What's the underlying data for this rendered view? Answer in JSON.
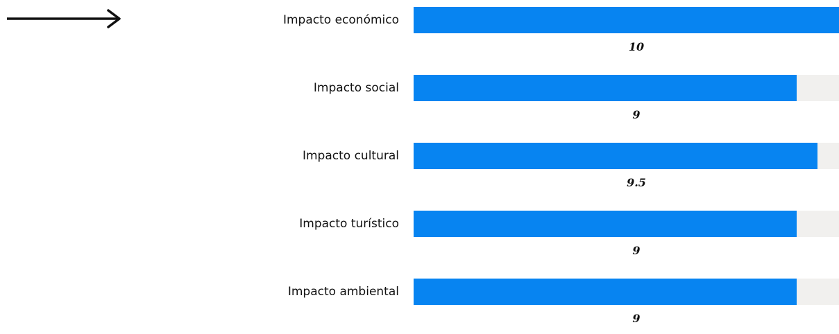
{
  "decor": {
    "arrow_icon": "long-right-arrow-icon"
  },
  "colors": {
    "bar": "#0784f1",
    "track": "#f1f0ee",
    "text": "#111111"
  },
  "chart_data": {
    "type": "bar",
    "orientation": "horizontal",
    "categories": [
      "Impacto económico",
      "Impacto social",
      "Impacto cultural",
      "Impacto turístico",
      "Impacto ambiental"
    ],
    "values": [
      10,
      9,
      9.5,
      9,
      9
    ],
    "value_labels": [
      "10",
      "9",
      "9.5",
      "9",
      "9"
    ],
    "xlim": [
      0,
      10
    ],
    "grid": false,
    "legend": "none"
  }
}
